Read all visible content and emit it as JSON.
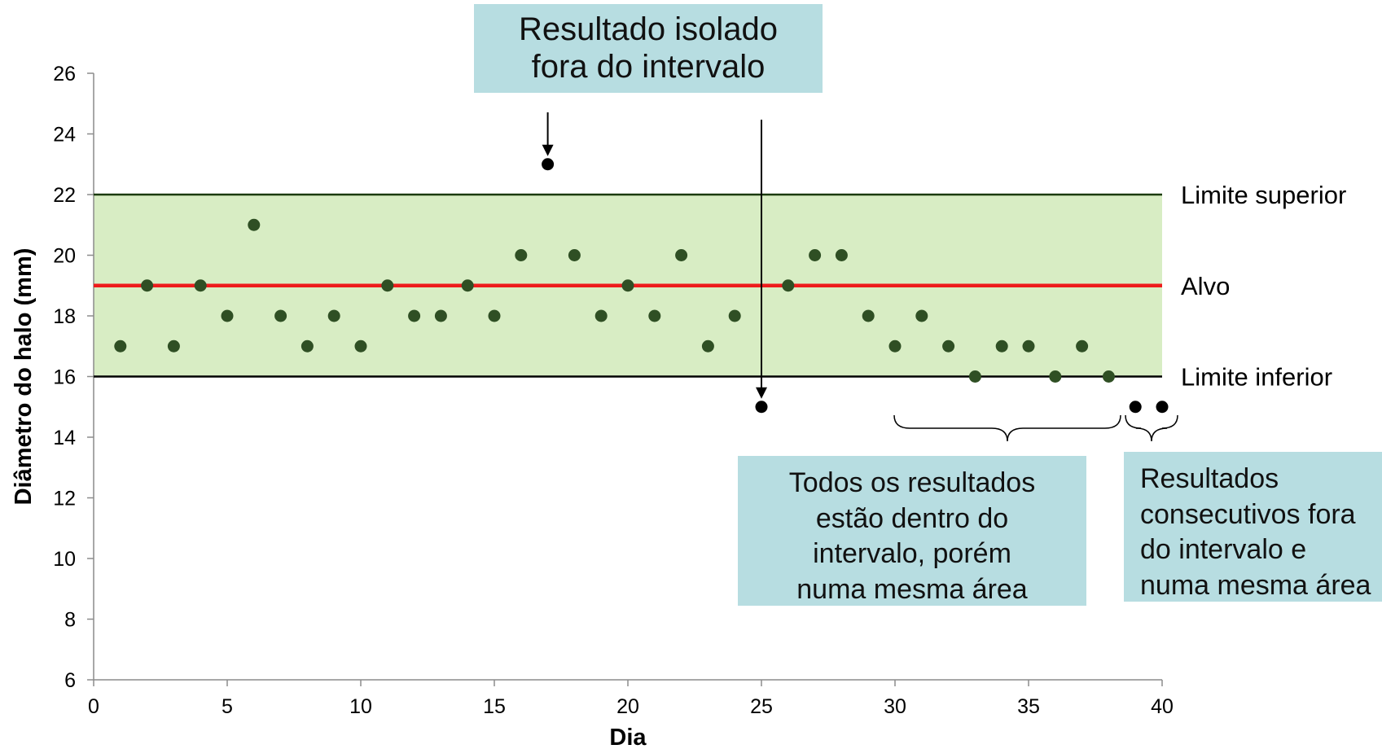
{
  "chart_data": {
    "type": "scatter",
    "xlabel": "Dia",
    "ylabel": "Diâmetro do halo (mm)",
    "xlim": [
      0,
      40
    ],
    "ylim": [
      6,
      26
    ],
    "x_ticks": [
      "0",
      "5",
      "10",
      "15",
      "20",
      "25",
      "30",
      "35",
      "40"
    ],
    "y_ticks": [
      "6",
      "8",
      "10",
      "12",
      "14",
      "16",
      "18",
      "20",
      "22",
      "24",
      "26"
    ],
    "grid": false,
    "acceptable_range": [
      16,
      22
    ],
    "colors": {
      "band": "#d8edc4",
      "target": "#ee1c1c",
      "in_range": "#2f4f24",
      "out_of_range": "#000000",
      "callout": "#b7dde1"
    },
    "points": [
      {
        "x": 1,
        "y": 17
      },
      {
        "x": 2,
        "y": 19
      },
      {
        "x": 3,
        "y": 17
      },
      {
        "x": 4,
        "y": 19
      },
      {
        "x": 5,
        "y": 18
      },
      {
        "x": 6,
        "y": 21
      },
      {
        "x": 7,
        "y": 18
      },
      {
        "x": 8,
        "y": 17
      },
      {
        "x": 9,
        "y": 18
      },
      {
        "x": 10,
        "y": 17
      },
      {
        "x": 11,
        "y": 19
      },
      {
        "x": 12,
        "y": 18
      },
      {
        "x": 13,
        "y": 18
      },
      {
        "x": 14,
        "y": 19
      },
      {
        "x": 15,
        "y": 18
      },
      {
        "x": 16,
        "y": 20
      },
      {
        "x": 17,
        "y": 23
      },
      {
        "x": 18,
        "y": 20
      },
      {
        "x": 19,
        "y": 18
      },
      {
        "x": 20,
        "y": 19
      },
      {
        "x": 21,
        "y": 18
      },
      {
        "x": 22,
        "y": 20
      },
      {
        "x": 23,
        "y": 17
      },
      {
        "x": 24,
        "y": 18
      },
      {
        "x": 25,
        "y": 15
      },
      {
        "x": 26,
        "y": 19
      },
      {
        "x": 27,
        "y": 20
      },
      {
        "x": 28,
        "y": 20
      },
      {
        "x": 29,
        "y": 18
      },
      {
        "x": 30,
        "y": 17
      },
      {
        "x": 31,
        "y": 18
      },
      {
        "x": 32,
        "y": 17
      },
      {
        "x": 33,
        "y": 16
      },
      {
        "x": 34,
        "y": 17
      },
      {
        "x": 35,
        "y": 17
      },
      {
        "x": 36,
        "y": 16
      },
      {
        "x": 37,
        "y": 17
      },
      {
        "x": 38,
        "y": 16
      },
      {
        "x": 39,
        "y": 15
      },
      {
        "x": 40,
        "y": 15
      }
    ],
    "reference_lines": [
      {
        "label": "Limite superior",
        "y": 22,
        "color": "#1a3a0a"
      },
      {
        "label": "Alvo",
        "y": 19,
        "color": "#ee1c1c"
      },
      {
        "label": "Limite inferior",
        "y": 16,
        "color": "#000000"
      }
    ],
    "annotations": {
      "isolated": [
        "Resultado isolado",
        "fora do intervalo"
      ],
      "same_area": [
        "Todos os resultados",
        "estão dentro do",
        "intervalo, porém",
        "numa mesma área"
      ],
      "consecutive": [
        "Resultados",
        "consecutivos fora",
        "do intervalo e",
        "numa mesma área"
      ]
    }
  }
}
